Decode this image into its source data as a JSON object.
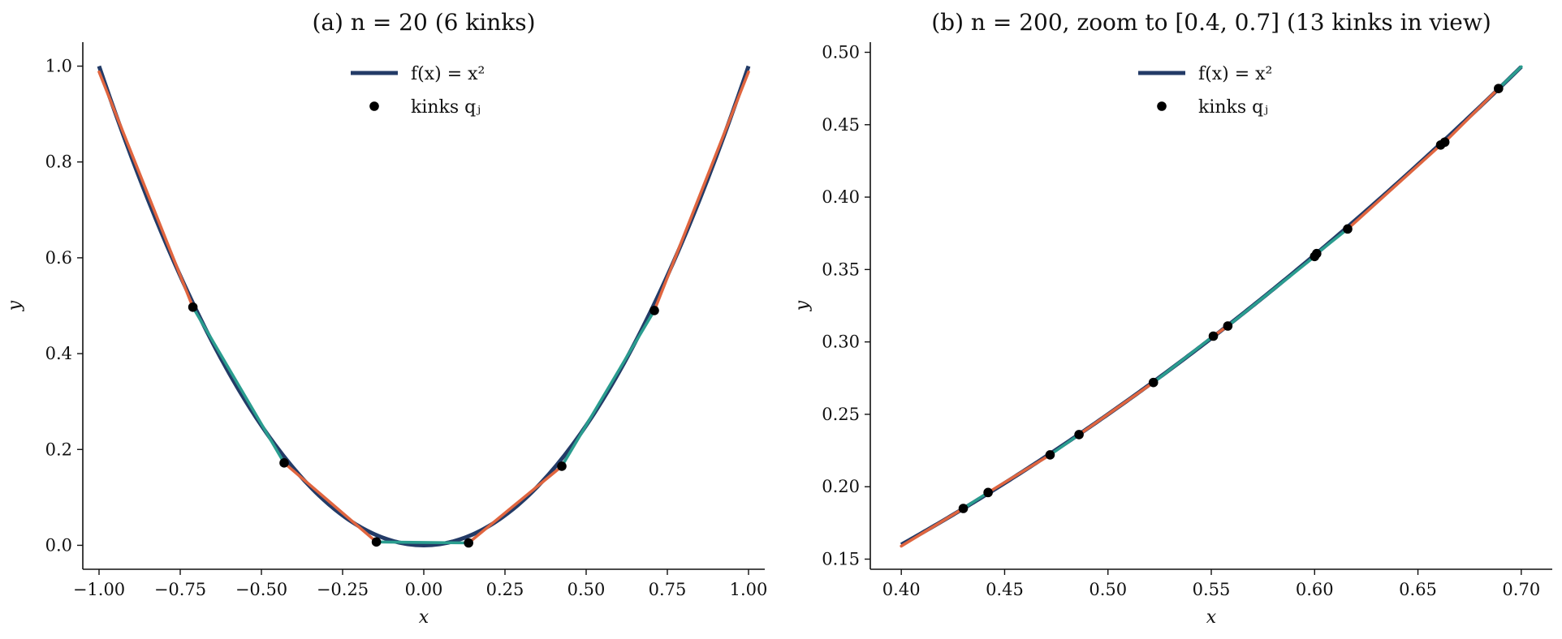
{
  "chart_data": [
    {
      "type": "line",
      "title": "(a)  n = 20  (6 kinks)",
      "xlabel": "x",
      "ylabel": "y",
      "xlim": [
        -1.05,
        1.05
      ],
      "ylim": [
        -0.05,
        1.05
      ],
      "xticks": [
        -1.0,
        -0.75,
        -0.5,
        -0.25,
        0.0,
        0.25,
        0.5,
        0.75,
        1.0
      ],
      "xtick_labels": [
        "−1.00",
        "−0.75",
        "−0.50",
        "−0.25",
        "0.00",
        "0.25",
        "0.50",
        "0.75",
        "1.00"
      ],
      "yticks": [
        0.0,
        0.2,
        0.4,
        0.6,
        0.8,
        1.0
      ],
      "ytick_labels": [
        "0.0",
        "0.2",
        "0.4",
        "0.6",
        "0.8",
        "1.0"
      ],
      "grid": false,
      "legend_position": "top-center",
      "legend": [
        {
          "label": "f(x) = x²",
          "kind": "line"
        },
        {
          "label": "kinks qⱼ",
          "kind": "marker"
        }
      ],
      "curve": {
        "name": "f(x) = x²",
        "function": "x^2",
        "x_range": [
          -1.0,
          1.0
        ],
        "color": "#233b67"
      },
      "approx_segments": [
        {
          "x": [
            -1.0,
            -0.711
          ],
          "y": [
            0.988,
            0.497
          ],
          "color": "#e0653f"
        },
        {
          "x": [
            -0.711,
            -0.43
          ],
          "y": [
            0.497,
            0.172
          ],
          "color": "#2a9d8f"
        },
        {
          "x": [
            -0.43,
            -0.146
          ],
          "y": [
            0.172,
            0.007
          ],
          "color": "#e0653f"
        },
        {
          "x": [
            -0.146,
            0.138
          ],
          "y": [
            0.007,
            0.005
          ],
          "color": "#2a9d8f"
        },
        {
          "x": [
            0.138,
            0.425
          ],
          "y": [
            0.005,
            0.165
          ],
          "color": "#e0653f"
        },
        {
          "x": [
            0.425,
            0.71
          ],
          "y": [
            0.165,
            0.49
          ],
          "color": "#2a9d8f"
        },
        {
          "x": [
            0.71,
            1.0
          ],
          "y": [
            0.49,
            0.988
          ],
          "color": "#e0653f"
        }
      ],
      "kinks": {
        "x": [
          -0.711,
          -0.43,
          -0.146,
          0.138,
          0.425,
          0.71
        ],
        "y": [
          0.497,
          0.172,
          0.007,
          0.005,
          0.165,
          0.49
        ]
      }
    },
    {
      "type": "line",
      "title": "(b)  n = 200, zoom to [0.4, 0.7]  (13 kinks in view)",
      "xlabel": "x",
      "ylabel": "y",
      "xlim": [
        0.385,
        0.715
      ],
      "ylim": [
        0.143,
        0.507
      ],
      "xticks": [
        0.4,
        0.45,
        0.5,
        0.55,
        0.6,
        0.65,
        0.7
      ],
      "xtick_labels": [
        "0.40",
        "0.45",
        "0.50",
        "0.55",
        "0.60",
        "0.65",
        "0.70"
      ],
      "yticks": [
        0.15,
        0.2,
        0.25,
        0.3,
        0.35,
        0.4,
        0.45,
        0.5
      ],
      "ytick_labels": [
        "0.15",
        "0.20",
        "0.25",
        "0.30",
        "0.35",
        "0.40",
        "0.45",
        "0.50"
      ],
      "grid": false,
      "legend_position": "top-center",
      "legend": [
        {
          "label": "f(x) = x²",
          "kind": "line"
        },
        {
          "label": "kinks qⱼ",
          "kind": "marker"
        }
      ],
      "curve": {
        "name": "f(x) = x²",
        "function": "x^2",
        "x_range": [
          0.4,
          0.7
        ],
        "color": "#233b67"
      },
      "approx_segments": [
        {
          "x": [
            0.4,
            0.43
          ],
          "y": [
            0.159,
            0.185
          ],
          "color": "#e0653f"
        },
        {
          "x": [
            0.43,
            0.442
          ],
          "y": [
            0.185,
            0.196
          ],
          "color": "#2a9d8f"
        },
        {
          "x": [
            0.442,
            0.472
          ],
          "y": [
            0.196,
            0.222
          ],
          "color": "#e0653f"
        },
        {
          "x": [
            0.472,
            0.486
          ],
          "y": [
            0.222,
            0.236
          ],
          "color": "#2a9d8f"
        },
        {
          "x": [
            0.486,
            0.522
          ],
          "y": [
            0.236,
            0.272
          ],
          "color": "#e0653f"
        },
        {
          "x": [
            0.522,
            0.551
          ],
          "y": [
            0.272,
            0.304
          ],
          "color": "#2a9d8f"
        },
        {
          "x": [
            0.551,
            0.558
          ],
          "y": [
            0.304,
            0.311
          ],
          "color": "#e0653f"
        },
        {
          "x": [
            0.558,
            0.6
          ],
          "y": [
            0.311,
            0.359
          ],
          "color": "#2a9d8f"
        },
        {
          "x": [
            0.6,
            0.601
          ],
          "y": [
            0.359,
            0.361
          ],
          "color": "#e0653f"
        },
        {
          "x": [
            0.601,
            0.616
          ],
          "y": [
            0.361,
            0.378
          ],
          "color": "#2a9d8f"
        },
        {
          "x": [
            0.616,
            0.661
          ],
          "y": [
            0.378,
            0.436
          ],
          "color": "#e0653f"
        },
        {
          "x": [
            0.661,
            0.663
          ],
          "y": [
            0.436,
            0.438
          ],
          "color": "#2a9d8f"
        },
        {
          "x": [
            0.663,
            0.689
          ],
          "y": [
            0.438,
            0.475
          ],
          "color": "#e0653f"
        },
        {
          "x": [
            0.689,
            0.7
          ],
          "y": [
            0.475,
            0.49
          ],
          "color": "#2a9d8f"
        }
      ],
      "kinks": {
        "x": [
          0.43,
          0.442,
          0.472,
          0.486,
          0.522,
          0.551,
          0.558,
          0.6,
          0.601,
          0.616,
          0.661,
          0.663,
          0.689
        ],
        "y": [
          0.185,
          0.196,
          0.222,
          0.236,
          0.272,
          0.304,
          0.311,
          0.359,
          0.361,
          0.378,
          0.436,
          0.438,
          0.475
        ]
      }
    }
  ]
}
